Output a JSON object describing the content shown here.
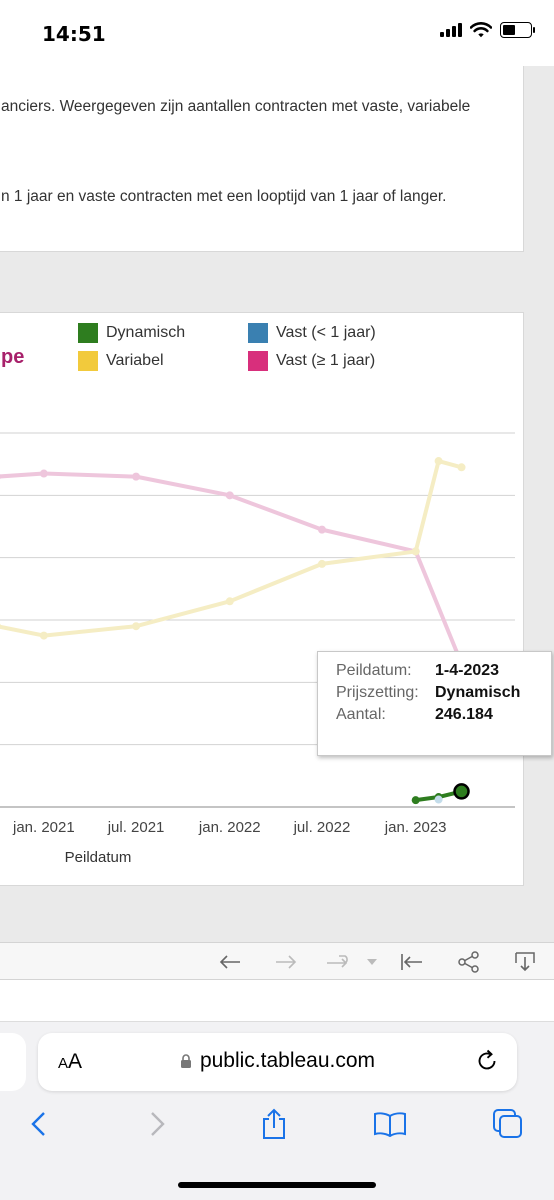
{
  "status_bar": {
    "time": "14:51"
  },
  "description": {
    "line1": "anciers. Weergegeven zijn aantallen contracten met vaste, variabele",
    "line2": "n 1 jaar en vaste contracten met een looptijd van 1 jaar of langer."
  },
  "chart_card": {
    "partial_title": "pe",
    "legend": [
      {
        "label": "Dynamisch",
        "color": "#2e7d1f"
      },
      {
        "label": "Vast (< 1 jaar)",
        "color": "#3a80b1"
      },
      {
        "label": "Variabel",
        "color": "#f2ca3c"
      },
      {
        "label": "Vast (≥ 1 jaar)",
        "color": "#d82f7c"
      }
    ]
  },
  "chart_data": {
    "type": "line",
    "xlabel": "Peildatum",
    "x_ticks": [
      "jan. 2021",
      "jul. 2021",
      "jan. 2022",
      "jul. 2022",
      "jan. 2023"
    ],
    "x_tick_dates": [
      "2021-01-01",
      "2021-07-01",
      "2022-01-01",
      "2022-07-01",
      "2023-01-01"
    ],
    "x_range": [
      "2020-10-01",
      "2023-07-15"
    ],
    "y_range": [
      0,
      6
    ],
    "grid": true,
    "y_axis_labels_visible": false,
    "series": [
      {
        "name": "Vast (≥ 1 jaar)",
        "color": "#eec6dc",
        "x": [
          "2020-10-01",
          "2021-01-01",
          "2021-07-01",
          "2022-01-01",
          "2022-07-01",
          "2023-01-01",
          "2023-04-01"
        ],
        "y": [
          5.3,
          5.35,
          5.3,
          5.0,
          4.45,
          4.1,
          2.3
        ]
      },
      {
        "name": "Variabel",
        "color": "#f5edc4",
        "x": [
          "2020-10-01",
          "2021-01-01",
          "2021-07-01",
          "2022-01-01",
          "2022-07-01",
          "2023-01-01",
          "2023-02-15",
          "2023-04-01"
        ],
        "y": [
          2.9,
          2.75,
          2.9,
          3.3,
          3.9,
          4.1,
          5.55,
          5.45
        ]
      },
      {
        "name": "Dynamisch",
        "color": "#2e7d1f",
        "x": [
          "2023-01-01",
          "2023-02-15",
          "2023-04-01"
        ],
        "y": [
          0.11,
          0.16,
          0.25
        ]
      },
      {
        "name": "Vast (< 1 jaar)",
        "color": "#c3dcea",
        "x": [
          "2023-02-15"
        ],
        "y": [
          0.12
        ]
      }
    ],
    "highlight": {
      "series": "Dynamisch",
      "x": "2023-04-01"
    }
  },
  "tooltip": {
    "rows": [
      {
        "key": "Peildatum:",
        "value": "1-4-2023"
      },
      {
        "key": "Prijszetting:",
        "value": "Dynamisch"
      },
      {
        "key": "Aantal:",
        "value": "246.184"
      }
    ]
  },
  "browser": {
    "aa_label_small": "A",
    "aa_label_large": "A",
    "url": "public.tableau.com"
  }
}
